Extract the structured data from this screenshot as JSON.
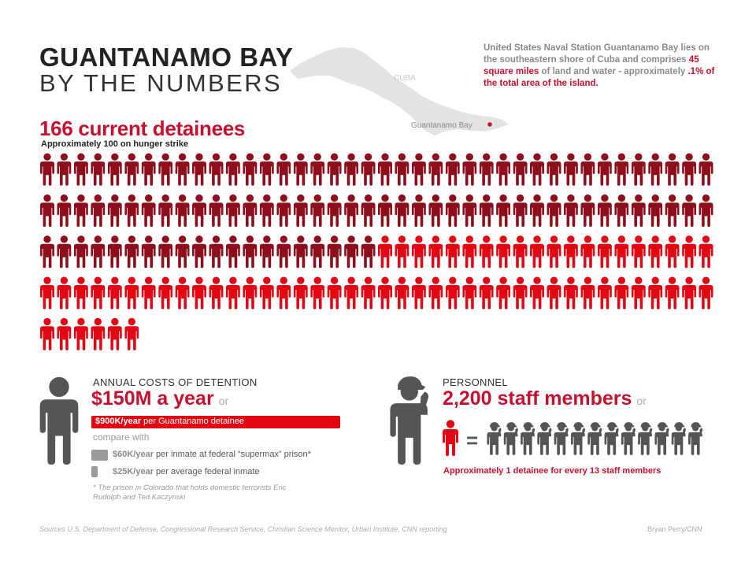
{
  "header": {
    "title_line1": "GUANTANAMO BAY",
    "title_line2": "BY THE NUMBERS"
  },
  "map": {
    "country_label": "CUBA",
    "location_label": "Guantanamo Bay",
    "land_color": "#e3e3e3",
    "marker_color": "#c8102e"
  },
  "intro": {
    "text_start": "United States Naval Station Guantanamo Bay lies on the southeastern shore of Cuba and comprises ",
    "highlight_area": "45 square miles",
    "text_middle": " of land and water - approximately ",
    "highlight_share": ".1% of the total area of the island."
  },
  "detainees": {
    "headline": "166 current detainees",
    "subtext": "Approximately 100 on hunger strike",
    "total": 166,
    "hunger_strike": 100,
    "per_row": 40,
    "hunger_color": "#8f0e1c",
    "other_color": "#e30613"
  },
  "costs": {
    "heading": "ANNUAL COSTS OF DETENTION",
    "big_value": "$150M a year",
    "or_word": "or",
    "detainee_cost_value": "$900K/year",
    "detainee_cost_label": " per Guantanamo detainee",
    "compare_label": "compare with",
    "supermax_value": "$60K/year",
    "supermax_label": " per inmate at federal “supermax” prison*",
    "average_value": "$25K/year",
    "average_label": " per average federal inmate",
    "footnote": "* The prison in Colorado that holds domestic terrorists Eric Rudolph and Ted Kaczynski",
    "figure_color": "#555555"
  },
  "personnel": {
    "heading": "PERSONNEL",
    "big_value": "2,200 staff members",
    "or_word": "or",
    "equals_sign": "=",
    "staff_per_detainee": 13,
    "ratio_note": "Approximately 1 detainee for every 13 staff members",
    "figure_color": "#555555",
    "detainee_color": "#e30613"
  },
  "footer": {
    "sources": "Sources U.S. Department of Defense, Congressional Research Service, Christian Science Monitor, Urban Institute, CNN reporting",
    "credit": "Bryan Perry/CNN"
  }
}
